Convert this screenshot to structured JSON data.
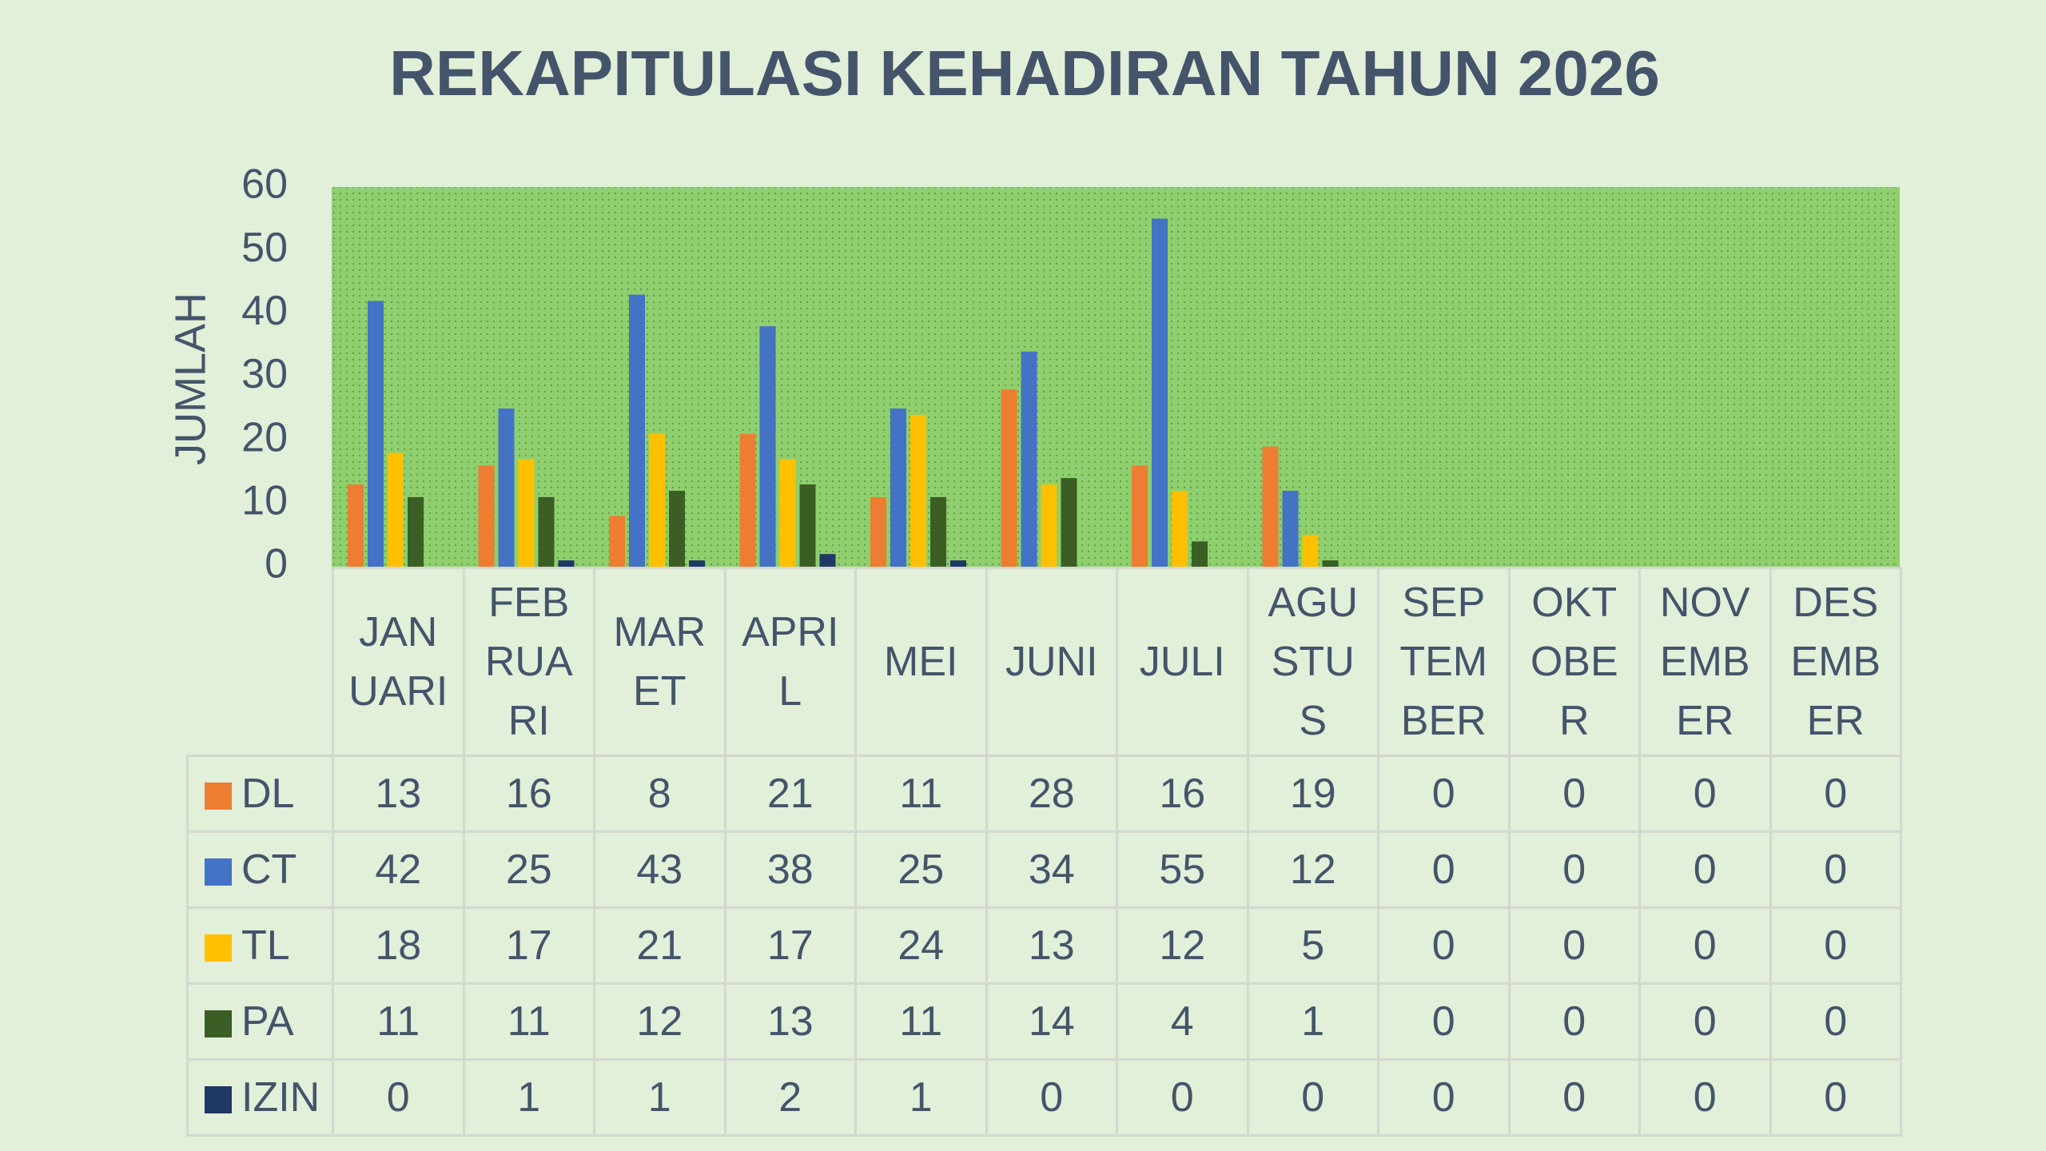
{
  "chart_data": {
    "type": "bar",
    "title": "REKAPITULASI KEHADIRAN TAHUN 2026",
    "y_label": "JUMLAH",
    "categories": [
      "JANUARI",
      "FEBRUARI",
      "MARET",
      "APRIL",
      "MEI",
      "JUNI",
      "JULI",
      "AGUSTUS",
      "SEPTEMBER",
      "OKTOBER",
      "NOVEMBER",
      "DESEMBER"
    ],
    "series": [
      {
        "name": "DL",
        "color": "#ed7d31",
        "values": [
          13,
          16,
          8,
          21,
          11,
          28,
          16,
          19,
          0,
          0,
          0,
          0
        ]
      },
      {
        "name": "CT",
        "color": "#4472c4",
        "values": [
          42,
          25,
          43,
          38,
          25,
          34,
          55,
          12,
          0,
          0,
          0,
          0
        ]
      },
      {
        "name": "TL",
        "color": "#ffc000",
        "values": [
          18,
          17,
          21,
          17,
          24,
          13,
          12,
          5,
          0,
          0,
          0,
          0
        ]
      },
      {
        "name": "PA",
        "color": "#3b5e24",
        "values": [
          11,
          11,
          12,
          13,
          11,
          14,
          4,
          1,
          0,
          0,
          0,
          0
        ]
      },
      {
        "name": "IZIN",
        "color": "#203864",
        "values": [
          0,
          1,
          1,
          2,
          1,
          0,
          0,
          0,
          0,
          0,
          0,
          0
        ]
      }
    ],
    "ylim": [
      0,
      60
    ],
    "yticks": [
      0,
      10,
      20,
      30,
      40,
      50,
      60
    ],
    "grid": false,
    "data_table": true
  }
}
